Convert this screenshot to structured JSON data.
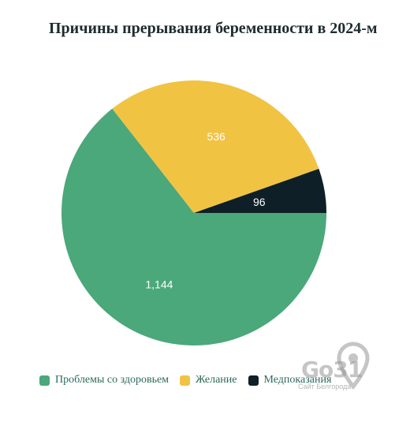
{
  "chart_data": {
    "type": "pie",
    "title": "Причины прерывания беременности в 2024-м",
    "slices": [
      {
        "label": "Проблемы со здоровьем",
        "value": 1144,
        "display": "1,144",
        "color": "#4aa87a"
      },
      {
        "label": "Желание",
        "value": 536,
        "display": "536",
        "color": "#f1c343"
      },
      {
        "label": "Медпоказания",
        "value": 96,
        "display": "96",
        "color": "#0f1f27"
      }
    ],
    "legend_position": "bottom-left"
  },
  "watermark": {
    "logo": "Go31",
    "tagline": "Сайт Белгорода"
  }
}
